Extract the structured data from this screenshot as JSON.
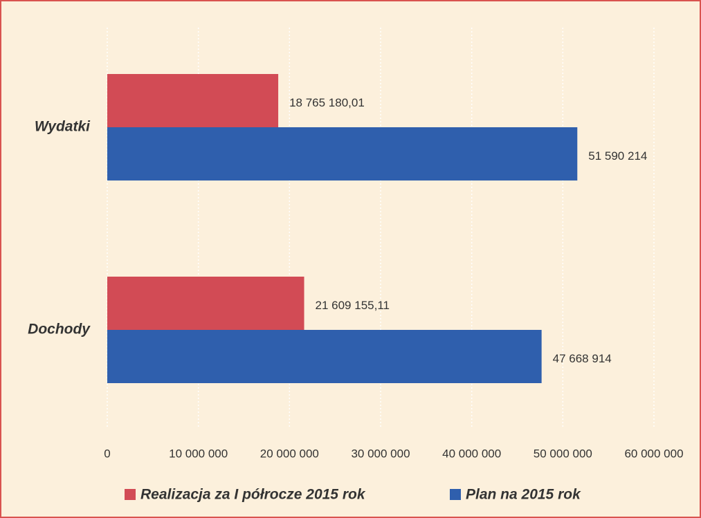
{
  "chart_data": {
    "type": "hbar",
    "categories": [
      "Wydatki",
      "Dochody"
    ],
    "series": [
      {
        "name": "Realizacja za I półrocze 2015 rok",
        "color": "#d24b55",
        "values": [
          18765180.01,
          21609155.11
        ],
        "value_labels": [
          "18 765 180,01",
          "21 609 155,11"
        ]
      },
      {
        "name": "Plan na 2015 rok",
        "color": "#2f5fad",
        "values": [
          51590214,
          47668914
        ],
        "value_labels": [
          "51 590 214",
          "47 668 914"
        ]
      }
    ],
    "xlim": [
      0,
      60000000
    ],
    "xticks": [
      0,
      {
        "value": 10000000,
        "label": "10 000 000"
      },
      {
        "value": 20000000,
        "label": "20 000 000"
      },
      {
        "value": 30000000,
        "label": "30 000 000"
      },
      {
        "value": 40000000,
        "label": "40 000 000"
      },
      {
        "value": 50000000,
        "label": "50 000 000"
      },
      {
        "value": 60000000,
        "label": "60 000 000"
      }
    ],
    "grid": true
  }
}
